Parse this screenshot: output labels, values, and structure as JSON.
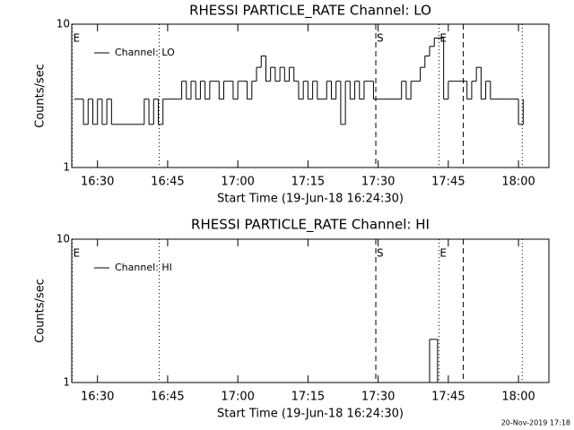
{
  "chart_data": [
    {
      "type": "line",
      "title": "RHESSI PARTICLE_RATE Channel: LO",
      "xlabel": "Start Time (19-Jun-18 16:24:30)",
      "ylabel": "Counts/sec",
      "log_y": true,
      "ylim": [
        1,
        10
      ],
      "yticks": [
        1,
        10
      ],
      "xlim": [
        984.5,
        1086.5
      ],
      "xticks": [
        {
          "value": 990,
          "label": "16:30"
        },
        {
          "value": 1005,
          "label": "16:45"
        },
        {
          "value": 1020,
          "label": "17:00"
        },
        {
          "value": 1035,
          "label": "17:15"
        },
        {
          "value": 1050,
          "label": "17:30"
        },
        {
          "value": 1065,
          "label": "17:45"
        },
        {
          "value": 1080,
          "label": "18:00"
        }
      ],
      "legend": "upper left",
      "markers": [
        {
          "x": 984.6,
          "style": "dotted",
          "label": "E"
        },
        {
          "x": 1003.2,
          "style": "dotted"
        },
        {
          "x": 1049.5,
          "style": "dashed",
          "label": "S"
        },
        {
          "x": 1063,
          "style": "dotted",
          "label": "E"
        },
        {
          "x": 1068.2,
          "style": "dashed"
        },
        {
          "x": 1080.8,
          "style": "dotted"
        }
      ],
      "series": [
        {
          "name": "Channel: LO",
          "color": "#000000",
          "x": [
            985,
            986,
            987,
            988,
            989,
            990,
            991,
            992,
            993,
            994,
            995,
            996,
            997,
            998,
            999,
            1000,
            1001,
            1002,
            1003,
            1004,
            1005,
            1006,
            1007,
            1008,
            1009,
            1010,
            1011,
            1012,
            1013,
            1014,
            1015,
            1016,
            1017,
            1018,
            1019,
            1020,
            1021,
            1022,
            1023,
            1024,
            1025,
            1026,
            1027,
            1028,
            1029,
            1030,
            1031,
            1032,
            1033,
            1034,
            1035,
            1036,
            1037,
            1038,
            1039,
            1040,
            1041,
            1042,
            1043,
            1044,
            1045,
            1046,
            1047,
            1048,
            1049,
            1050,
            1051,
            1052,
            1053,
            1054,
            1055,
            1056,
            1057,
            1058,
            1059,
            1060,
            1061,
            1062,
            1063,
            1064,
            1065,
            1066,
            1067,
            1068,
            1069,
            1070,
            1071,
            1072,
            1073,
            1074,
            1075,
            1076,
            1077,
            1078,
            1079,
            1080,
            1081
          ],
          "values": [
            3,
            3,
            2,
            3,
            2,
            3,
            2,
            3,
            2,
            2,
            2,
            2,
            2,
            2,
            2,
            3,
            2,
            3,
            2,
            3,
            3,
            3,
            3,
            4,
            3,
            4,
            3,
            4,
            3,
            4,
            4,
            3,
            4,
            4,
            3,
            4,
            4,
            3,
            4,
            5,
            6,
            4,
            5,
            4,
            5,
            4,
            5,
            4,
            3,
            4,
            3,
            4,
            3,
            3,
            4,
            3,
            4,
            2,
            4,
            3,
            4,
            3,
            4,
            4,
            3,
            3,
            3,
            3,
            3,
            3,
            4,
            3,
            4,
            4,
            5,
            6,
            7,
            8,
            8,
            3,
            4,
            4,
            4,
            4,
            3,
            4,
            5,
            3,
            4,
            3,
            3,
            3,
            3,
            3,
            3,
            2,
            3
          ]
        }
      ]
    },
    {
      "type": "line",
      "title": "RHESSI PARTICLE_RATE Channel: HI",
      "xlabel": "Start Time (19-Jun-18 16:24:30)",
      "ylabel": "Counts/sec",
      "log_y": true,
      "ylim": [
        1,
        10
      ],
      "yticks": [
        1,
        10
      ],
      "xlim": [
        984.5,
        1086.5
      ],
      "xticks": [
        {
          "value": 990,
          "label": "16:30"
        },
        {
          "value": 1005,
          "label": "16:45"
        },
        {
          "value": 1020,
          "label": "17:00"
        },
        {
          "value": 1035,
          "label": "17:15"
        },
        {
          "value": 1050,
          "label": "17:30"
        },
        {
          "value": 1065,
          "label": "17:45"
        },
        {
          "value": 1080,
          "label": "18:00"
        }
      ],
      "legend": "upper left",
      "markers": [
        {
          "x": 984.6,
          "style": "dotted",
          "label": "E"
        },
        {
          "x": 1003.2,
          "style": "dotted"
        },
        {
          "x": 1049.5,
          "style": "dashed",
          "label": "S"
        },
        {
          "x": 1063,
          "style": "dotted",
          "label": "E"
        },
        {
          "x": 1068.2,
          "style": "dashed"
        },
        {
          "x": 1080.8,
          "style": "dotted"
        }
      ],
      "series": [
        {
          "name": "Channel: HI",
          "color": "#000000",
          "x": [
            985,
            1061,
            1061.7,
            1062.7,
            1081
          ],
          "values": [
            1,
            2,
            2,
            1,
            1
          ]
        }
      ]
    }
  ],
  "footer": "20-Nov-2019 17:18"
}
